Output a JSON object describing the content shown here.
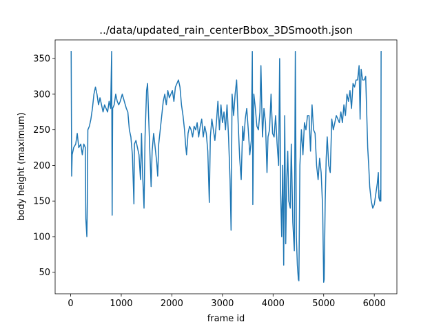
{
  "chart_data": {
    "type": "line",
    "title": "../data/updated_rain_centerBbox_3DSmooth.json",
    "xlabel": "frame id",
    "ylabel": "body height (maximum)",
    "xlim": [
      -307,
      6447
    ],
    "ylim": [
      19.8,
      376.2
    ],
    "xticks": [
      0,
      1000,
      2000,
      3000,
      4000,
      5000,
      6000
    ],
    "yticks": [
      50,
      100,
      150,
      200,
      250,
      300,
      350
    ],
    "grid": false,
    "x": [
      0,
      10,
      20,
      30,
      60,
      100,
      130,
      160,
      200,
      230,
      260,
      290,
      300,
      320,
      330,
      340,
      370,
      400,
      430,
      460,
      490,
      520,
      550,
      580,
      610,
      640,
      670,
      700,
      730,
      760,
      790,
      810,
      820,
      830,
      860,
      890,
      920,
      950,
      980,
      1020,
      1060,
      1100,
      1130,
      1160,
      1190,
      1220,
      1240,
      1250,
      1260,
      1290,
      1320,
      1350,
      1380,
      1400,
      1420,
      1450,
      1470,
      1500,
      1520,
      1540,
      1570,
      1590,
      1610,
      1640,
      1670,
      1700,
      1720,
      1740,
      1770,
      1800,
      1830,
      1860,
      1890,
      1920,
      1950,
      1980,
      2010,
      2040,
      2070,
      2100,
      2130,
      2160,
      2190,
      2220,
      2250,
      2270,
      2290,
      2320,
      2350,
      2380,
      2410,
      2440,
      2470,
      2500,
      2530,
      2560,
      2590,
      2620,
      2650,
      2680,
      2710,
      2740,
      2760,
      2790,
      2820,
      2850,
      2880,
      2910,
      2940,
      2970,
      3000,
      3030,
      3060,
      3090,
      3120,
      3150,
      3170,
      3190,
      3220,
      3250,
      3280,
      3310,
      3340,
      3370,
      3400,
      3420,
      3450,
      3480,
      3510,
      3540,
      3570,
      3590,
      3600,
      3620,
      3650,
      3680,
      3710,
      3740,
      3760,
      3790,
      3820,
      3850,
      3880,
      3900,
      3930,
      3960,
      3990,
      4020,
      4050,
      4080,
      4110,
      4130,
      4150,
      4170,
      4190,
      4210,
      4230,
      4250,
      4270,
      4290,
      4310,
      4340,
      4360,
      4390,
      4420,
      4440,
      4460,
      4480,
      4500,
      4510,
      4530,
      4560,
      4590,
      4620,
      4650,
      4680,
      4710,
      4740,
      4770,
      4800,
      4830,
      4860,
      4890,
      4920,
      4950,
      4980,
      5000,
      5010,
      5030,
      5050,
      5070,
      5100,
      5130,
      5160,
      5190,
      5220,
      5250,
      5280,
      5310,
      5340,
      5370,
      5400,
      5430,
      5460,
      5490,
      5520,
      5550,
      5580,
      5610,
      5640,
      5670,
      5700,
      5720,
      5740,
      5770,
      5800,
      5830,
      5850,
      5870,
      5890,
      5910,
      5940,
      5970,
      6000,
      6030,
      6060,
      6080,
      6090,
      6110,
      6120,
      6130,
      6135,
      6145
    ],
    "series": [
      {
        "color": "#1f77b4",
        "values": [
          360,
          360,
          185,
          215,
          225,
          230,
          245,
          225,
          230,
          215,
          230,
          225,
          125,
          100,
          150,
          250,
          255,
          265,
          280,
          300,
          310,
          300,
          285,
          295,
          285,
          275,
          285,
          280,
          275,
          290,
          280,
          360,
          130,
          280,
          285,
          300,
          290,
          285,
          290,
          300,
          290,
          280,
          275,
          250,
          240,
          215,
          170,
          146,
          230,
          235,
          225,
          215,
          180,
          245,
          190,
          140,
          240,
          305,
          315,
          270,
          210,
          170,
          220,
          245,
          225,
          205,
          185,
          230,
          250,
          270,
          290,
          300,
          285,
          305,
          295,
          300,
          305,
          290,
          310,
          315,
          320,
          310,
          285,
          270,
          250,
          230,
          215,
          245,
          255,
          250,
          240,
          255,
          250,
          260,
          240,
          255,
          265,
          240,
          255,
          245,
          220,
          148,
          240,
          265,
          250,
          235,
          260,
          290,
          250,
          285,
          260,
          275,
          250,
          285,
          240,
          180,
          109,
          300,
          270,
          300,
          320,
          260,
          210,
          180,
          255,
          235,
          265,
          280,
          250,
          215,
          235,
          360,
          145,
          300,
          280,
          255,
          250,
          275,
          340,
          240,
          280,
          260,
          190,
          240,
          250,
          300,
          245,
          240,
          270,
          230,
          200,
          350,
          160,
          100,
          200,
          60,
          270,
          90,
          180,
          220,
          150,
          140,
          230,
          120,
          80,
          360,
          100,
          60,
          40,
          38,
          200,
          250,
          215,
          260,
          250,
          270,
          270,
          220,
          285,
          250,
          245,
          200,
          180,
          210,
          190,
          140,
          36,
          40,
          150,
          210,
          240,
          200,
          190,
          265,
          250,
          260,
          270,
          265,
          260,
          275,
          260,
          285,
          270,
          300,
          290,
          305,
          280,
          315,
          310,
          320,
          320,
          340,
          265,
          335,
          320,
          320,
          325,
          275,
          225,
          200,
          170,
          150,
          140,
          145,
          160,
          175,
          190,
          155,
          150,
          165,
          150,
          360,
          360
        ]
      }
    ]
  }
}
